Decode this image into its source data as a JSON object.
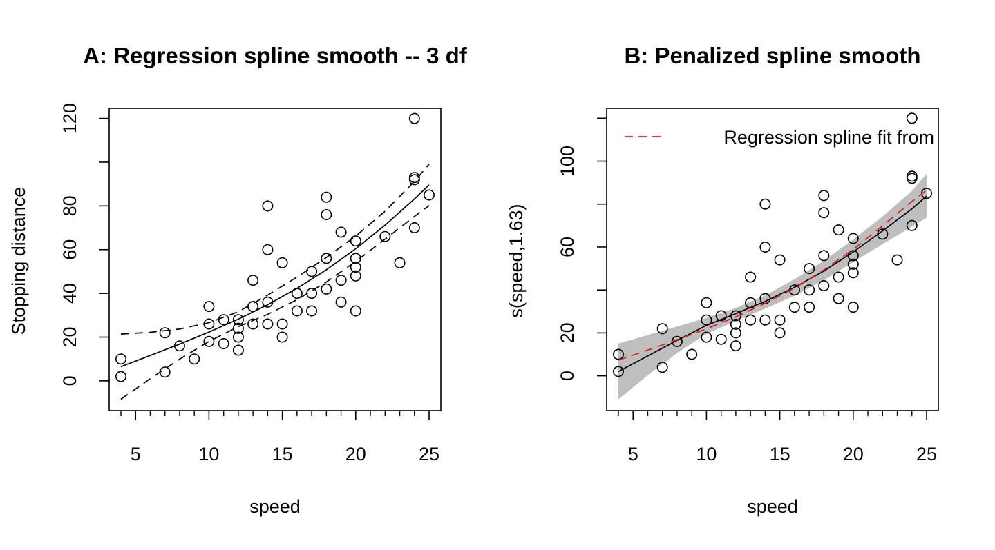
{
  "chart_data": [
    {
      "type": "scatter",
      "title": "A: Regression spline smooth -- 3 df",
      "xlabel": "speed",
      "ylabel": "Stopping distance",
      "xlim": [
        3.2,
        25.8
      ],
      "ylim": [
        -13.6,
        124.6
      ],
      "x_ticks": [
        5,
        10,
        15,
        20,
        25
      ],
      "x_tick_labels": [
        "5",
        "10",
        "15",
        "20",
        "25"
      ],
      "x_minor_ticks": [
        4,
        6,
        7,
        8,
        9,
        11,
        12,
        13,
        14,
        16,
        17,
        18,
        19,
        21,
        22,
        23,
        24
      ],
      "y_ticks": [
        0,
        20,
        40,
        60,
        80,
        100,
        120
      ],
      "y_tick_labels": [
        "0",
        "20",
        "40",
        "60",
        "80",
        "",
        "120"
      ],
      "grid": false,
      "points": {
        "x": [
          4,
          4,
          7,
          7,
          8,
          9,
          10,
          10,
          10,
          11,
          11,
          12,
          12,
          12,
          12,
          13,
          13,
          13,
          13,
          14,
          14,
          14,
          14,
          15,
          15,
          15,
          16,
          16,
          17,
          17,
          17,
          18,
          18,
          18,
          18,
          19,
          19,
          19,
          20,
          20,
          20,
          20,
          20,
          22,
          23,
          24,
          24,
          24,
          24,
          25
        ],
        "y": [
          2,
          10,
          4,
          22,
          16,
          10,
          18,
          26,
          34,
          17,
          28,
          14,
          20,
          24,
          28,
          26,
          34,
          34,
          46,
          26,
          36,
          60,
          80,
          20,
          26,
          54,
          32,
          40,
          32,
          40,
          50,
          42,
          56,
          76,
          84,
          36,
          46,
          68,
          32,
          48,
          52,
          56,
          64,
          66,
          54,
          70,
          92,
          93,
          120,
          85
        ]
      },
      "series": [
        {
          "style": "solid",
          "color": "#000000",
          "x": [
            4,
            6,
            8,
            10,
            12,
            14,
            16,
            18,
            20,
            22,
            24,
            25
          ],
          "y": [
            6.5,
            11.6,
            16.8,
            22.3,
            28.2,
            34.8,
            42.3,
            50.8,
            60.4,
            71.2,
            83.2,
            89.6
          ]
        },
        {
          "style": "dashed",
          "color": "#000000",
          "x": [
            4,
            6,
            8,
            10,
            12,
            14,
            16,
            18,
            20,
            22,
            24,
            25
          ],
          "y": [
            21.4,
            22.2,
            23.7,
            26.6,
            31.6,
            39.2,
            47.5,
            56.4,
            66.2,
            77.6,
            91.2,
            99.1
          ]
        },
        {
          "style": "dashed",
          "color": "#000000",
          "x": [
            4,
            6,
            8,
            10,
            12,
            14,
            16,
            18,
            20,
            22,
            24,
            25
          ],
          "y": [
            -8.4,
            1.0,
            9.9,
            18.0,
            24.8,
            30.4,
            37.1,
            45.2,
            54.6,
            64.8,
            75.2,
            80.1
          ]
        }
      ]
    },
    {
      "type": "scatter",
      "title": "B: Penalized spline smooth",
      "xlabel": "speed",
      "ylabel": "s(speed,1.63)",
      "xlim": [
        3.2,
        25.8
      ],
      "ylim": [
        -16.2,
        124.6
      ],
      "x_ticks": [
        5,
        10,
        15,
        20,
        25
      ],
      "x_tick_labels": [
        "5",
        "10",
        "15",
        "20",
        "25"
      ],
      "x_minor_ticks": [
        4,
        6,
        7,
        8,
        9,
        11,
        12,
        13,
        14,
        16,
        17,
        18,
        19,
        21,
        22,
        23,
        24
      ],
      "y_ticks": [
        0,
        20,
        40,
        60,
        80,
        100,
        120
      ],
      "y_tick_labels": [
        "0",
        "20",
        "",
        "60",
        "",
        "100",
        ""
      ],
      "grid": false,
      "legend": {
        "position": "top-right",
        "entries": [
          {
            "label": "Regression spline fit from",
            "style": "dashed",
            "color": "#e31a1c"
          }
        ]
      },
      "points": {
        "x": [
          4,
          4,
          7,
          7,
          8,
          9,
          10,
          10,
          10,
          11,
          11,
          12,
          12,
          12,
          12,
          13,
          13,
          13,
          13,
          14,
          14,
          14,
          14,
          15,
          15,
          15,
          16,
          16,
          17,
          17,
          17,
          18,
          18,
          18,
          18,
          19,
          19,
          19,
          20,
          20,
          20,
          20,
          20,
          22,
          23,
          24,
          24,
          24,
          24,
          25
        ],
        "y": [
          2,
          10,
          4,
          22,
          16,
          10,
          18,
          26,
          34,
          17,
          28,
          14,
          20,
          24,
          28,
          26,
          34,
          34,
          46,
          26,
          36,
          60,
          80,
          20,
          26,
          54,
          32,
          40,
          32,
          40,
          50,
          42,
          56,
          76,
          84,
          36,
          46,
          68,
          32,
          48,
          52,
          56,
          64,
          66,
          54,
          70,
          92,
          93,
          120,
          85
        ]
      },
      "band": {
        "color": "#bebebe",
        "x": [
          4,
          6,
          8,
          10,
          12,
          14,
          16,
          18,
          20,
          22,
          24,
          25
        ],
        "lower": [
          -11.0,
          0.3,
          10.6,
          19.5,
          25.6,
          31.3,
          37.3,
          44.5,
          53.0,
          61.3,
          69.5,
          73.7
        ],
        "upper": [
          15.0,
          19.0,
          23.0,
          27.0,
          31.6,
          37.5,
          45.0,
          53.6,
          63.5,
          74.2,
          86.2,
          94.1
        ]
      },
      "series": [
        {
          "style": "solid",
          "color": "#000000",
          "x": [
            4,
            6,
            8,
            10,
            12,
            14,
            16,
            18,
            20,
            22,
            24,
            25
          ],
          "y": [
            2.0,
            9.3,
            16.5,
            23.5,
            29.0,
            34.7,
            41.2,
            48.8,
            57.7,
            67.5,
            77.8,
            83.7
          ]
        },
        {
          "style": "dashed",
          "color": "#e31a1c",
          "x": [
            4,
            6,
            8,
            10,
            12,
            14,
            16,
            18,
            20,
            22,
            24,
            25
          ],
          "y": [
            7.3,
            12.0,
            16.8,
            21.9,
            27.5,
            33.8,
            40.9,
            49.3,
            58.9,
            69.9,
            81.2,
            86.5
          ]
        }
      ]
    }
  ]
}
